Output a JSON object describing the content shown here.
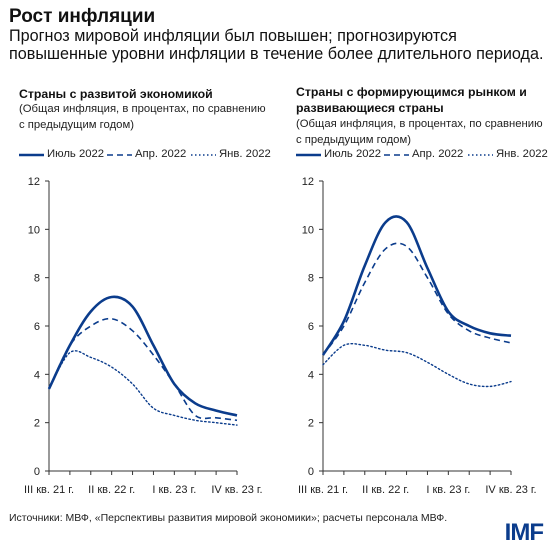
{
  "title": "Рост инфляции",
  "subtitle": "Прогноз мировой инфляции был повышен; прогнозируются повышенные уровни инфляции в течение более длительного периода.",
  "source": "Источники: МВФ, «Перспективы развития мировой экономики»; расчеты персонала МВФ.",
  "logo": "IMF",
  "colors": {
    "series": "#0b3c8c",
    "axis": "#333333"
  },
  "legend": [
    {
      "label": "Июль 2022",
      "style": "solid"
    },
    {
      "label": "Апр. 2022",
      "style": "dashed"
    },
    {
      "label": "Янв. 2022",
      "style": "dotted"
    }
  ],
  "panels": [
    {
      "title": "Страны с развитой экономикой",
      "subtitle": "(Общая инфляция, в процентах, по сравнению с предыдущим годом)"
    },
    {
      "title": "Страны с формирующимся рынком и развивающиеся страны",
      "subtitle": "(Общая инфляция, в процентах, по сравнению с предыдущим годом)"
    }
  ],
  "chart_data": [
    {
      "type": "line",
      "title": "Страны с развитой экономикой",
      "x": [
        0,
        1,
        2,
        3,
        4,
        5,
        6,
        7,
        8,
        9
      ],
      "x_tick_labels": [
        "III кв. 21 г.",
        "II кв. 22 г.",
        "I кв. 23 г.",
        "IV кв. 23 г."
      ],
      "x_tick_positions": [
        0,
        3,
        6,
        9
      ],
      "ylim": [
        0,
        12
      ],
      "yticks": [
        0,
        2,
        4,
        6,
        8,
        10,
        12
      ],
      "series": [
        {
          "name": "Июль 2022",
          "style": "solid",
          "values": [
            3.4,
            5.2,
            6.6,
            7.2,
            6.8,
            5.2,
            3.6,
            2.8,
            2.5,
            2.3
          ]
        },
        {
          "name": "Апр. 2022",
          "style": "dashed",
          "values": [
            3.4,
            5.2,
            6.0,
            6.3,
            5.8,
            4.8,
            3.6,
            2.3,
            2.2,
            2.1
          ]
        },
        {
          "name": "Янв. 2022",
          "style": "dotted",
          "values": [
            3.4,
            4.9,
            4.7,
            4.3,
            3.6,
            2.6,
            2.3,
            2.1,
            2.0,
            1.9
          ]
        }
      ]
    },
    {
      "type": "line",
      "title": "Страны с формирующимся рынком и развивающиеся страны",
      "x": [
        0,
        1,
        2,
        3,
        4,
        5,
        6,
        7,
        8,
        9
      ],
      "x_tick_labels": [
        "III кв. 21 г.",
        "II кв. 22 г.",
        "I кв. 23 г.",
        "IV кв. 23 г."
      ],
      "x_tick_positions": [
        0,
        3,
        6,
        9
      ],
      "ylim": [
        0,
        12
      ],
      "yticks": [
        0,
        2,
        4,
        6,
        8,
        10,
        12
      ],
      "series": [
        {
          "name": "Июль 2022",
          "style": "solid",
          "values": [
            4.8,
            6.2,
            8.5,
            10.3,
            10.3,
            8.4,
            6.6,
            6.0,
            5.7,
            5.6
          ]
        },
        {
          "name": "Апр. 2022",
          "style": "dashed",
          "values": [
            4.8,
            6.0,
            7.8,
            9.2,
            9.3,
            8.0,
            6.5,
            5.8,
            5.5,
            5.3
          ]
        },
        {
          "name": "Янв. 2022",
          "style": "dotted",
          "values": [
            4.4,
            5.2,
            5.2,
            5.0,
            4.9,
            4.5,
            4.0,
            3.6,
            3.5,
            3.7
          ]
        }
      ]
    }
  ]
}
